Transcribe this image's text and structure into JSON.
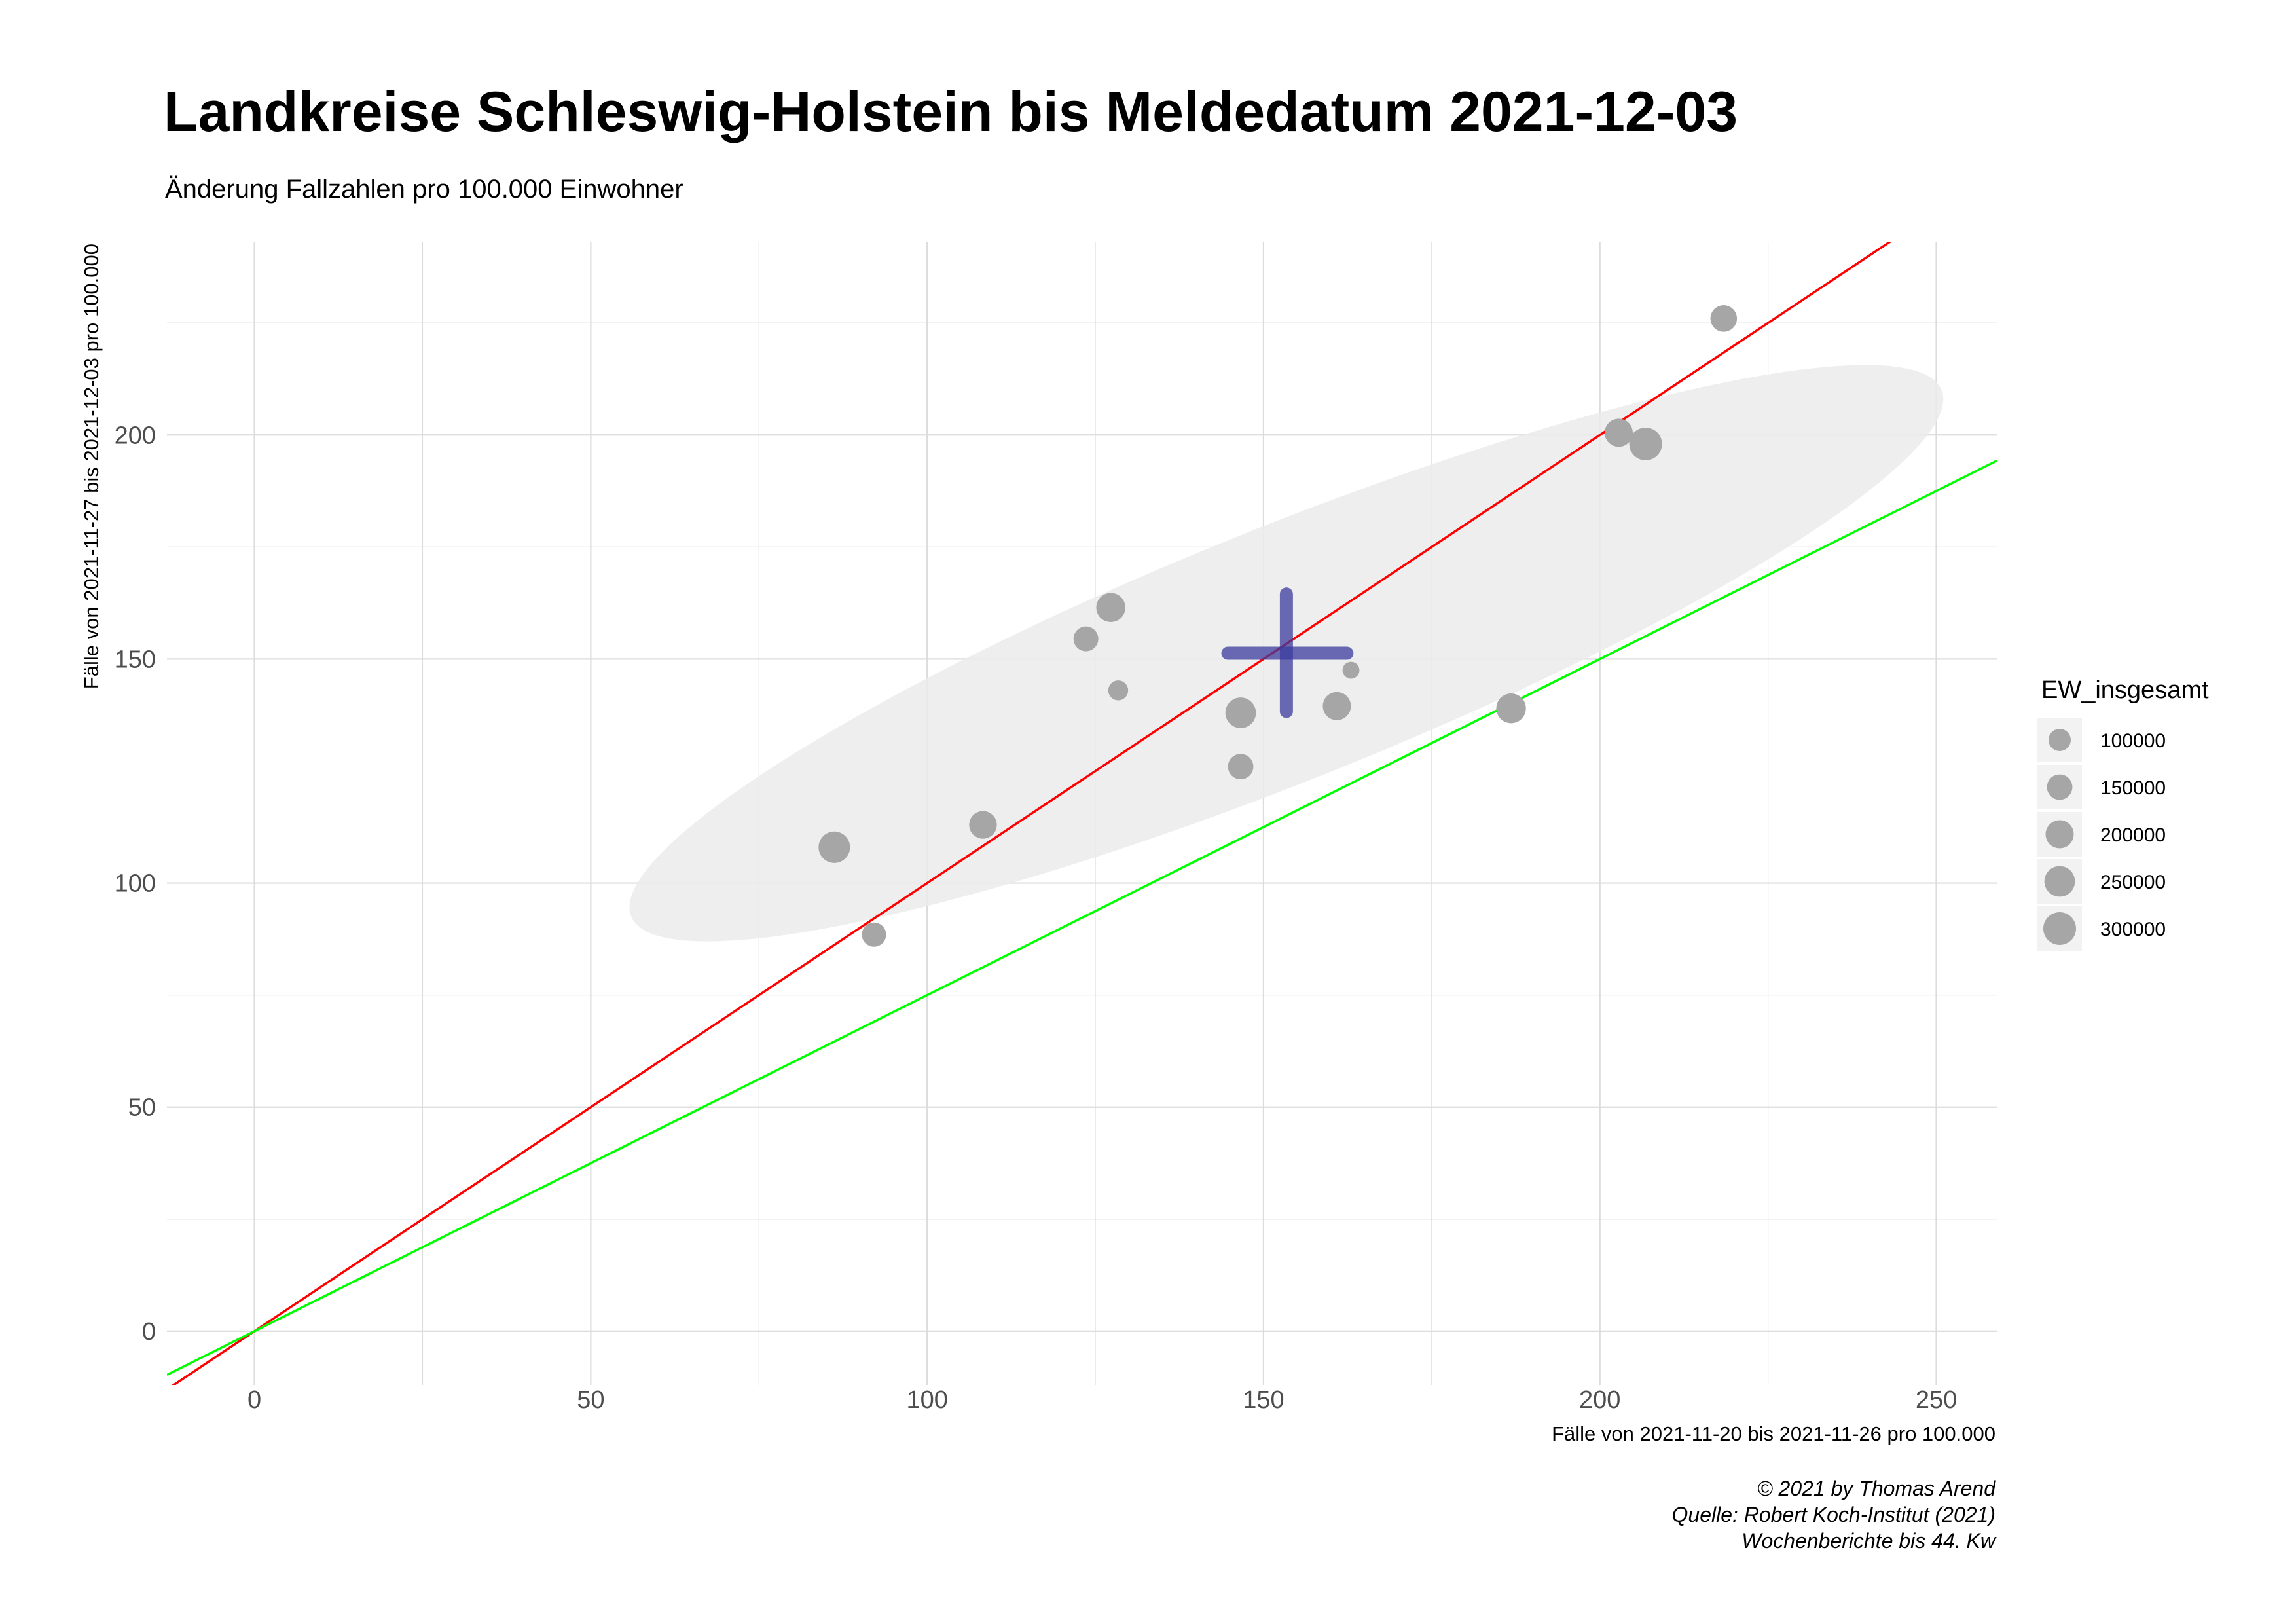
{
  "chart_data": {
    "type": "scatter",
    "title": "Landkreise Schleswig-Holstein bis Meldedatum 2021-12-03",
    "subtitle": "Änderung Fallzahlen pro 100.000 Einwohner",
    "xlabel": "Fälle von 2021-11-20 bis 2021-11-26 pro 100.000",
    "ylabel": "Fälle von 2021-11-27 bis 2021-12-03 pro 100.000",
    "xlim": [
      -13,
      259
    ],
    "ylim": [
      -12,
      243
    ],
    "x_ticks": [
      0,
      50,
      100,
      150,
      200,
      250
    ],
    "y_ticks": [
      0,
      50,
      100,
      150,
      200
    ],
    "x_tick_labels": [
      "0",
      "50",
      "100",
      "150",
      "200",
      "250"
    ],
    "y_tick_labels": [
      "0",
      "50",
      "100",
      "150",
      "200"
    ],
    "grid": true,
    "points": [
      {
        "x": 218.4,
        "y": 226.0,
        "size": 170000
      },
      {
        "x": 202.8,
        "y": 200.5,
        "size": 200000
      },
      {
        "x": 206.8,
        "y": 198.0,
        "size": 300000
      },
      {
        "x": 127.3,
        "y": 161.5,
        "size": 220000
      },
      {
        "x": 123.6,
        "y": 154.5,
        "size": 140000
      },
      {
        "x": 128.4,
        "y": 143.0,
        "size": 70000
      },
      {
        "x": 146.6,
        "y": 138.0,
        "size": 250000
      },
      {
        "x": 160.9,
        "y": 139.5,
        "size": 200000
      },
      {
        "x": 163.0,
        "y": 147.5,
        "size": 40000
      },
      {
        "x": 186.8,
        "y": 139.0,
        "size": 230000
      },
      {
        "x": 146.6,
        "y": 126.0,
        "size": 150000
      },
      {
        "x": 108.3,
        "y": 113.0,
        "size": 190000
      },
      {
        "x": 86.2,
        "y": 108.0,
        "size": 270000
      },
      {
        "x": 92.1,
        "y": 88.5,
        "size": 130000
      }
    ],
    "mean_marker": {
      "x": 153.4,
      "y": 151.3,
      "x_extent": [
        144.7,
        162.4
      ],
      "y_extent": [
        138.3,
        164.5
      ],
      "color": "#3b3b9e"
    },
    "ellipse": {
      "center": [
        153.4,
        151.3
      ],
      "semi_major": 114,
      "semi_minor": 26,
      "angle_deg": 32.0,
      "color": "#ebebeb"
    },
    "reference_lines": [
      {
        "name": "identity",
        "slope": 1.0,
        "intercept": 0,
        "color": "#ff0000"
      },
      {
        "name": "decline",
        "slope": 0.75,
        "intercept": 0,
        "color": "#00ff00"
      }
    ],
    "legend": {
      "title": "EW_insgesamt",
      "placement": "right",
      "items": [
        {
          "label": "100000",
          "value": 100000
        },
        {
          "label": "150000",
          "value": 150000
        },
        {
          "label": "200000",
          "value": 200000
        },
        {
          "label": "250000",
          "value": 250000
        },
        {
          "label": "300000",
          "value": 300000
        }
      ]
    },
    "caption": [
      "© 2021 by Thomas Arend",
      "Quelle: Robert Koch-Institut (2021)",
      "Wochenberichte bis 44. Kw"
    ],
    "colors": {
      "point": "#a6a6a6",
      "grid": "#dcdcdc",
      "legend_key_bg": "#f2f2f2"
    }
  }
}
